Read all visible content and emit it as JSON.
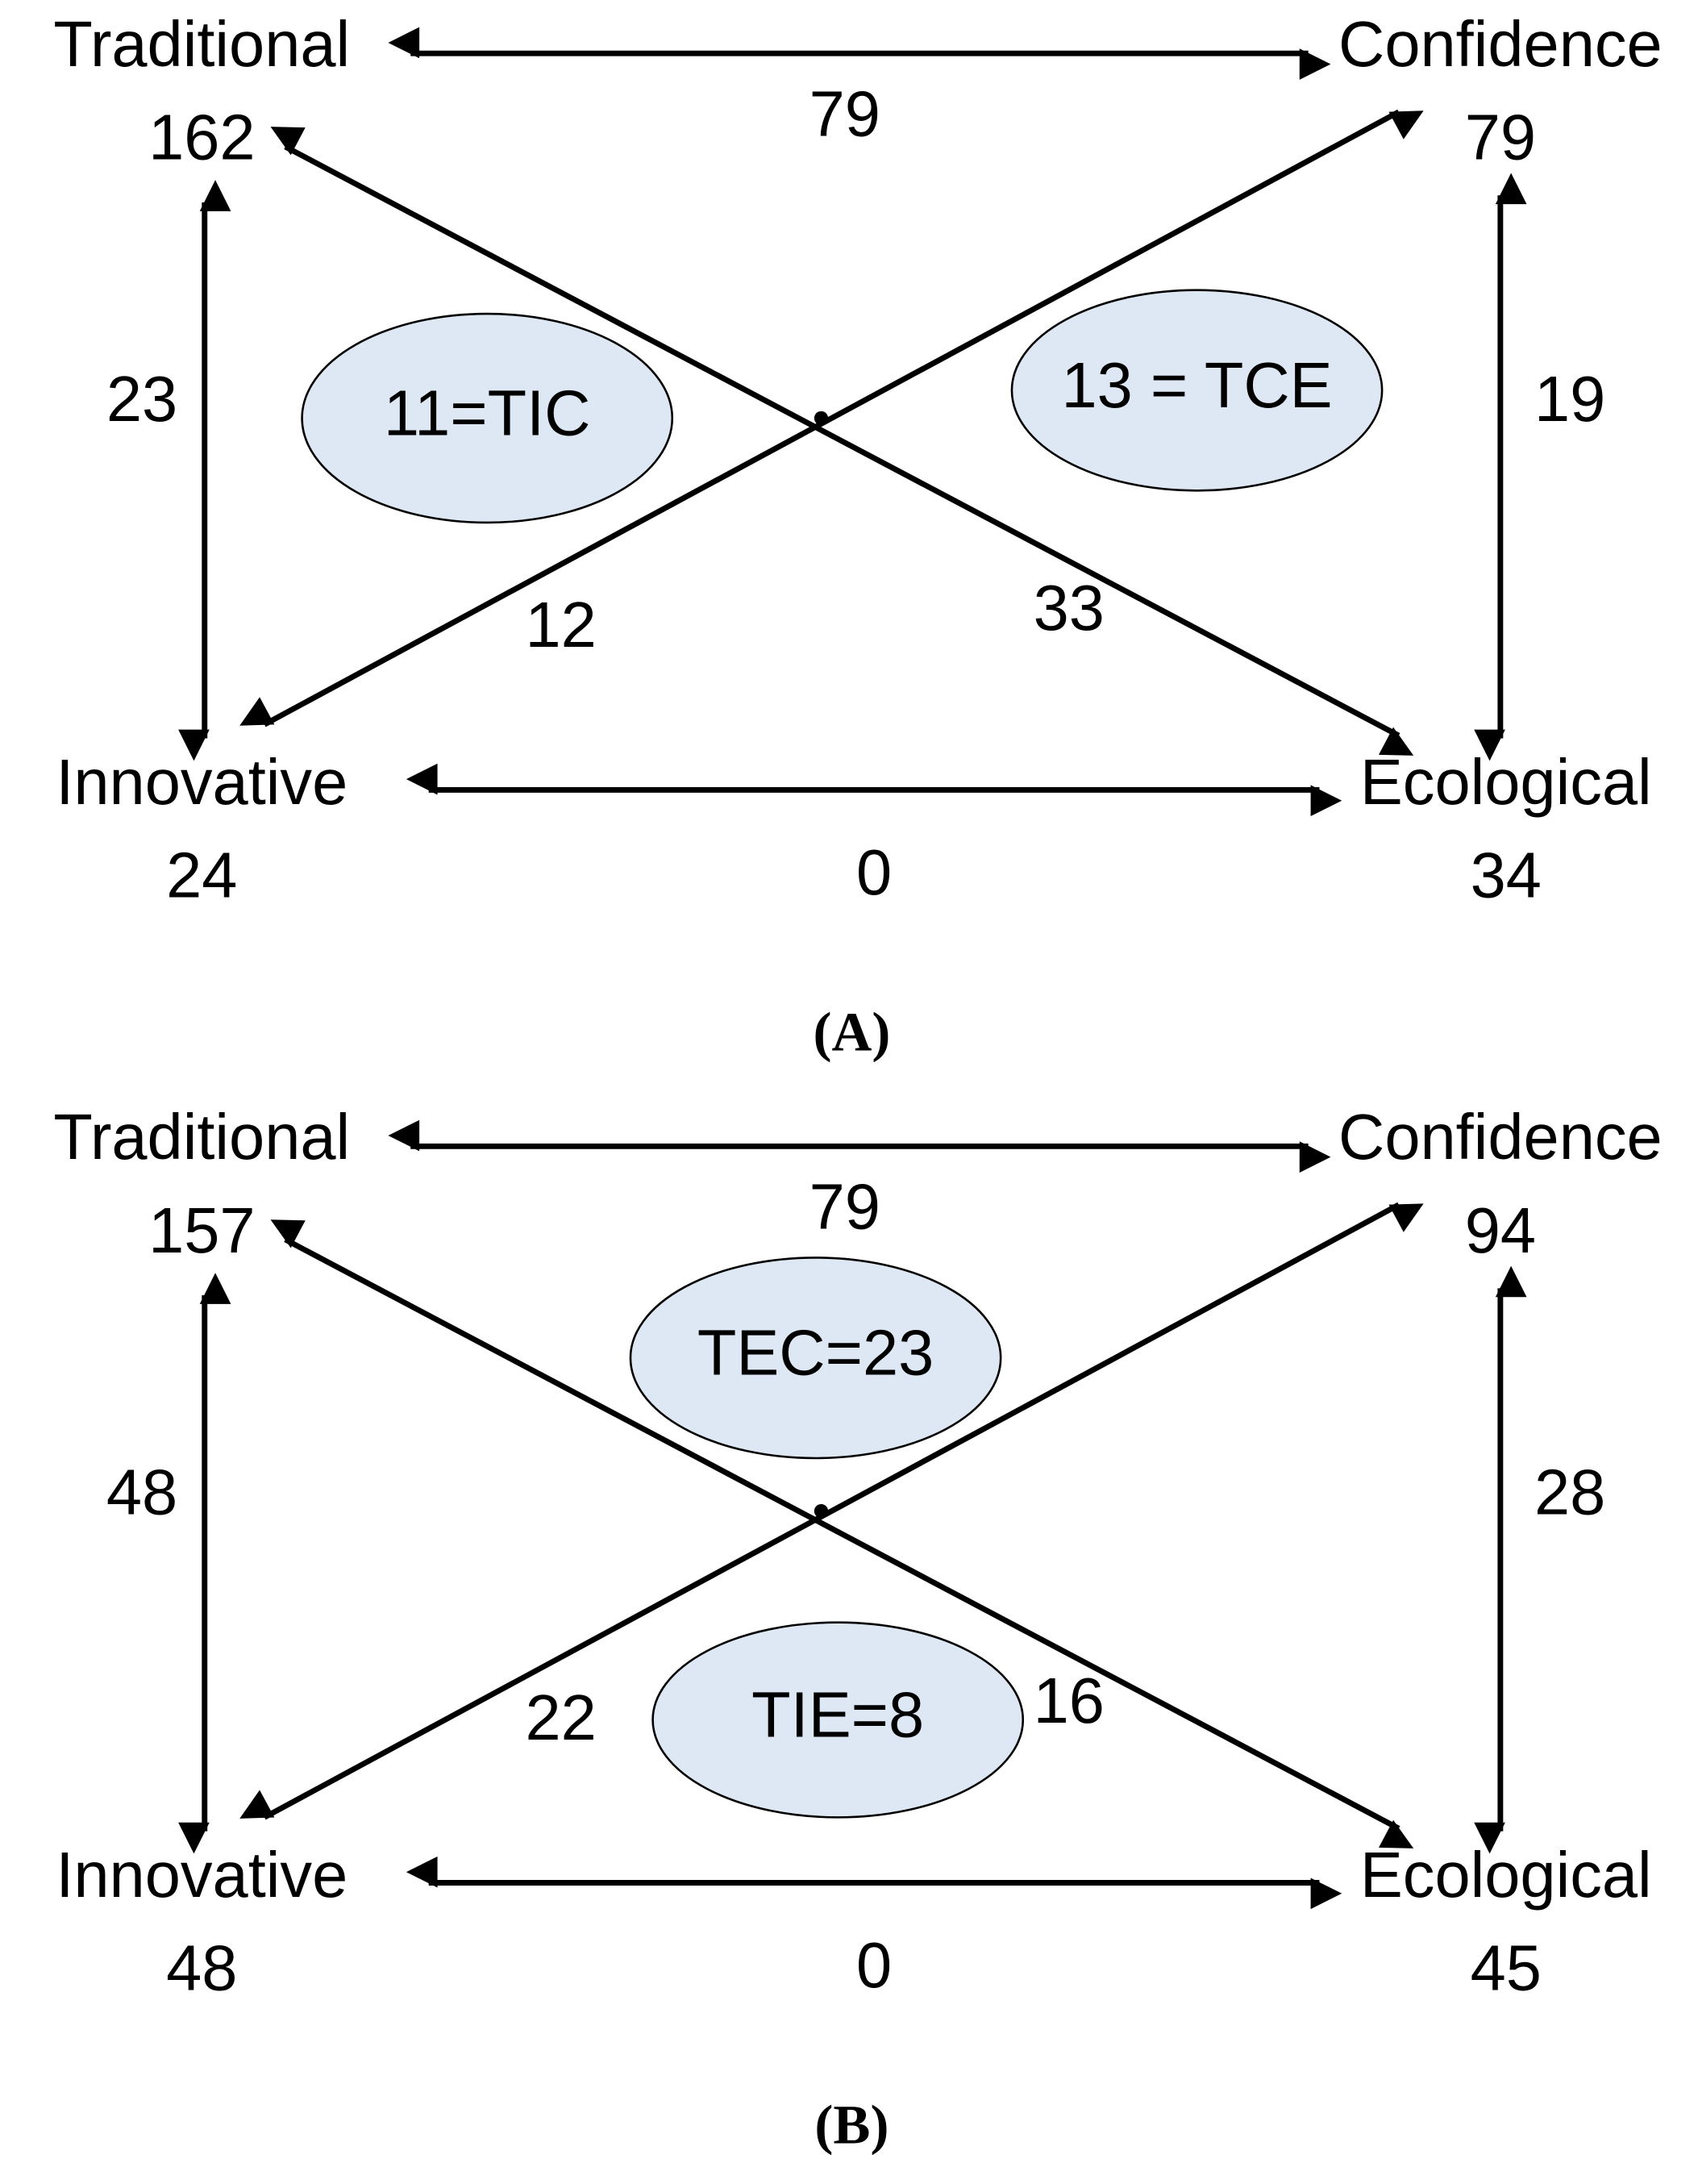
{
  "panels": [
    {
      "caption": "(A)",
      "nodes": [
        {
          "label": "Traditional",
          "count": 162
        },
        {
          "label": "Confidence",
          "count": 79
        },
        {
          "label": "Innovative",
          "count": 24
        },
        {
          "label": "Ecological",
          "count": 34
        }
      ],
      "edges": [
        {
          "label": 79
        },
        {
          "label": 0
        },
        {
          "label": 23
        },
        {
          "label": 19
        },
        {
          "label": 33
        },
        {
          "label": 12
        }
      ],
      "groups": [
        {
          "label": "11=TIC"
        },
        {
          "label": "13 = TCE"
        }
      ]
    },
    {
      "caption": "(B)",
      "nodes": [
        {
          "label": "Traditional",
          "count": 157
        },
        {
          "label": "Confidence",
          "count": 94
        },
        {
          "label": "Innovative",
          "count": 48
        },
        {
          "label": "Ecological",
          "count": 45
        }
      ],
      "edges": [
        {
          "label": 79
        },
        {
          "label": 0
        },
        {
          "label": 48
        },
        {
          "label": 28
        },
        {
          "label": 16
        },
        {
          "label": 22
        }
      ],
      "groups": [
        {
          "label": "TEC=23"
        },
        {
          "label": "TIE=8"
        }
      ]
    }
  ]
}
